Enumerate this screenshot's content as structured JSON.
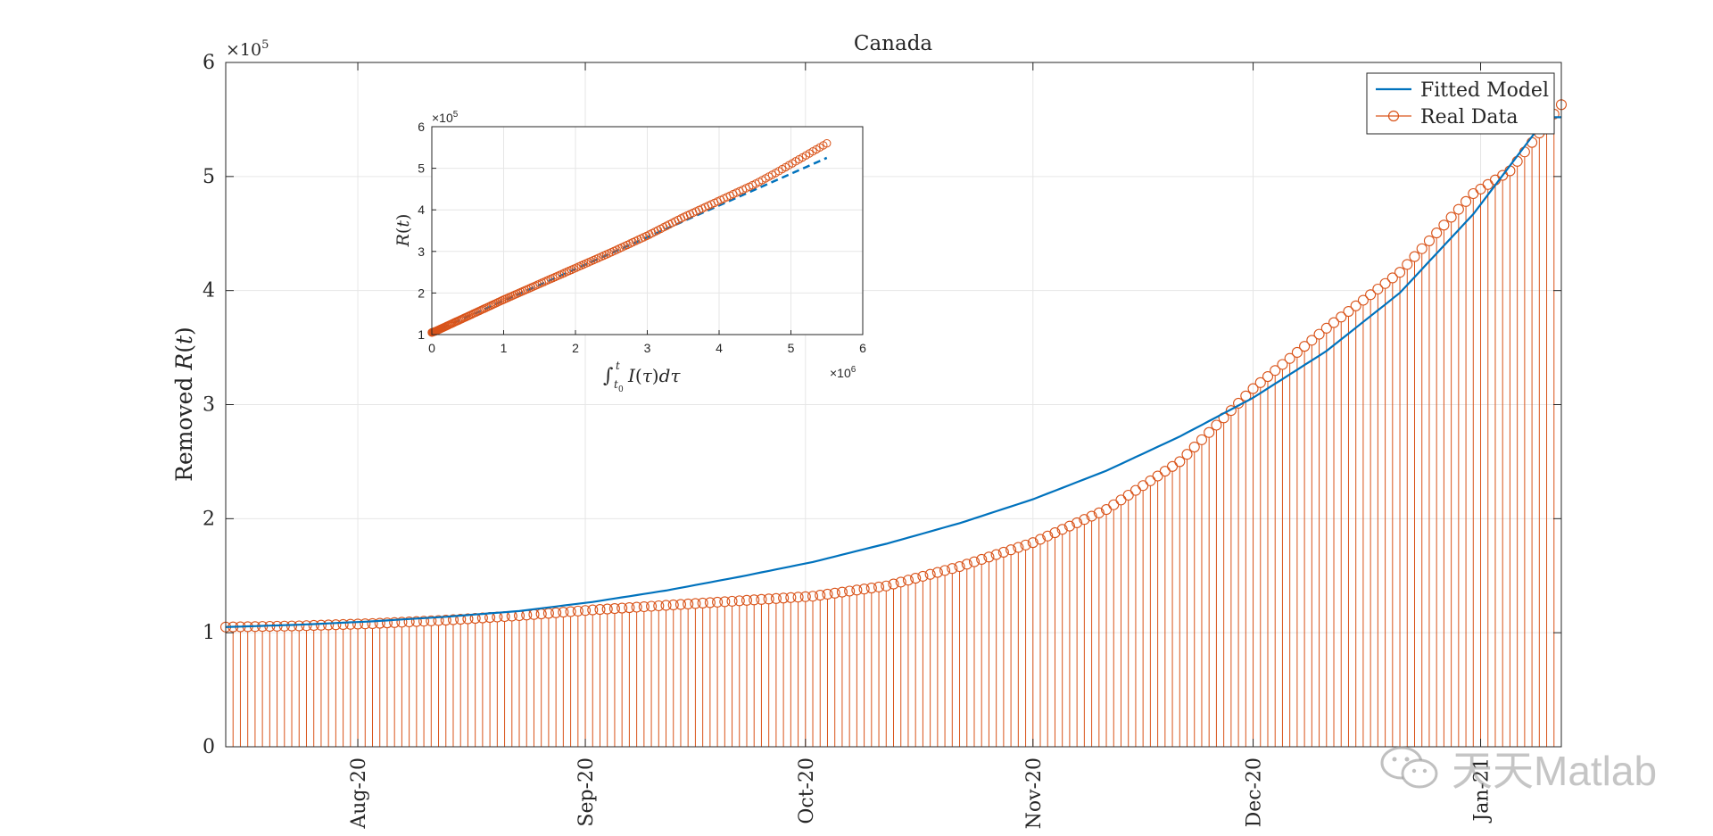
{
  "chart_data": [
    {
      "type": "line",
      "title": "Canada",
      "xlabel": "",
      "ylabel": "Removed R(t)",
      "ylabel_parts": [
        "Removed ",
        "R",
        "(",
        "t",
        ")"
      ],
      "y_exponent_label": "×10",
      "y_exponent_power": "5",
      "ylim": [
        0,
        6
      ],
      "yticks": [
        0,
        1,
        2,
        3,
        4,
        5,
        6
      ],
      "ytick_labels": [
        "0",
        "1",
        "2",
        "3",
        "4",
        "5",
        "6"
      ],
      "x_start_date": "2020-07-14",
      "x_end_date": "2021-01-12",
      "xtick_dates": [
        "2020-08-01",
        "2020-09-01",
        "2020-10-01",
        "2020-11-01",
        "2020-12-01",
        "2021-01-01"
      ],
      "xtick_labels": [
        "Aug-20",
        "Sep-20",
        "Oct-20",
        "Nov-20",
        "Dec-20",
        "Jan-21"
      ],
      "grid": true,
      "legend_position": "top-right",
      "series": [
        {
          "name": "Fitted Model",
          "style": "line",
          "color": "#0072BD",
          "dates": [
            "2020-07-14",
            "2020-07-24",
            "2020-08-03",
            "2020-08-13",
            "2020-08-23",
            "2020-09-02",
            "2020-09-12",
            "2020-09-22",
            "2020-10-02",
            "2020-10-12",
            "2020-10-22",
            "2020-11-01",
            "2020-11-11",
            "2020-11-21",
            "2020-12-01",
            "2020-12-11",
            "2020-12-21",
            "2020-12-31",
            "2021-01-10"
          ],
          "values": [
            1.05,
            1.07,
            1.1,
            1.14,
            1.19,
            1.27,
            1.37,
            1.49,
            1.62,
            1.78,
            1.96,
            2.17,
            2.42,
            2.72,
            3.06,
            3.47,
            3.98,
            4.67,
            5.52
          ]
        },
        {
          "name": "Real Data",
          "style": "stem",
          "marker": "circle",
          "color": "#D95319",
          "dates": [
            "2020-07-14",
            "2020-07-24",
            "2020-08-03",
            "2020-08-13",
            "2020-08-23",
            "2020-09-02",
            "2020-09-12",
            "2020-09-22",
            "2020-10-02",
            "2020-10-12",
            "2020-10-22",
            "2020-11-01",
            "2020-11-11",
            "2020-11-21",
            "2020-12-01",
            "2020-12-11",
            "2020-12-21",
            "2020-12-31",
            "2021-01-05",
            "2021-01-12"
          ],
          "values": [
            1.05,
            1.06,
            1.08,
            1.11,
            1.15,
            1.2,
            1.24,
            1.28,
            1.32,
            1.41,
            1.58,
            1.79,
            2.08,
            2.5,
            3.14,
            3.67,
            4.16,
            4.85,
            5.05,
            5.63
          ]
        }
      ]
    },
    {
      "type": "scatter",
      "inset": true,
      "title": "",
      "xlabel": "∫t0t I(τ) dτ",
      "xlabel_parts": [
        "∫",
        "t",
        "t",
        "0",
        "I",
        "(",
        "τ",
        ")",
        "dτ"
      ],
      "ylabel": "R(t)",
      "ylabel_parts": [
        "R",
        "(",
        "t",
        ")"
      ],
      "x_exponent_label": "×10",
      "x_exponent_power": "6",
      "y_exponent_label": "×10",
      "y_exponent_power": "5",
      "xlim": [
        0,
        6
      ],
      "ylim": [
        1,
        6
      ],
      "xticks": [
        0,
        1,
        2,
        3,
        4,
        5,
        6
      ],
      "xtick_labels": [
        "0",
        "1",
        "2",
        "3",
        "4",
        "5",
        "6"
      ],
      "yticks": [
        1,
        2,
        3,
        4,
        5,
        6
      ],
      "ytick_labels": [
        "1",
        "2",
        "3",
        "4",
        "5",
        "6"
      ],
      "grid": true,
      "series": [
        {
          "style": "dashed-line",
          "color": "#0072BD",
          "x": [
            0,
            5.5
          ],
          "y": [
            1.05,
            5.25
          ]
        },
        {
          "style": "markers",
          "marker": "circle",
          "color": "#D95319",
          "x": [
            0.0,
            0.05,
            0.1,
            0.2,
            0.3,
            0.4,
            0.5,
            0.6,
            0.8,
            1.0,
            1.5,
            2.0,
            2.5,
            3.0,
            3.5,
            4.0,
            4.5,
            4.8,
            5.0,
            5.2,
            5.5
          ],
          "y": [
            1.05,
            1.08,
            1.12,
            1.2,
            1.28,
            1.36,
            1.44,
            1.52,
            1.68,
            1.84,
            2.22,
            2.6,
            2.98,
            3.38,
            3.82,
            4.22,
            4.62,
            4.9,
            5.1,
            5.3,
            5.6
          ]
        }
      ]
    }
  ],
  "watermark": {
    "icon": "wechat-icon",
    "text": "天天Matlab"
  }
}
